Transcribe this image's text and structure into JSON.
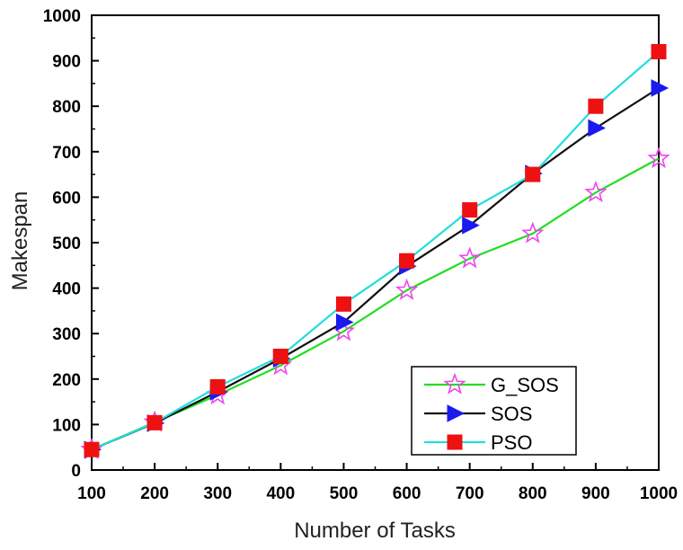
{
  "chart_data": {
    "type": "line",
    "title": "",
    "xlabel": "Number of Tasks",
    "ylabel": "Makespan",
    "xlim": [
      100,
      1000
    ],
    "ylim": [
      0,
      1000
    ],
    "x_ticks": [
      "100",
      "200",
      "300",
      "400",
      "500",
      "600",
      "700",
      "800",
      "900",
      "1000"
    ],
    "y_ticks": [
      "0",
      "100",
      "200",
      "300",
      "400",
      "500",
      "600",
      "700",
      "800",
      "900",
      "1000"
    ],
    "grid": false,
    "legend_position": "bottom-right",
    "series": [
      {
        "name": "G_SOS",
        "color": "#22dd22",
        "marker": "star",
        "marker_color": "#ee44ee",
        "x": [
          100,
          200,
          300,
          400,
          500,
          600,
          700,
          800,
          900,
          1000
        ],
        "y": [
          45,
          105,
          165,
          230,
          305,
          395,
          465,
          520,
          610,
          685
        ]
      },
      {
        "name": "SOS",
        "color": "#111111",
        "marker": "triangle-right",
        "marker_color": "#1a1aee",
        "x": [
          100,
          200,
          300,
          400,
          500,
          600,
          700,
          800,
          900,
          1000
        ],
        "y": [
          45,
          103,
          172,
          245,
          325,
          448,
          538,
          652,
          752,
          840
        ]
      },
      {
        "name": "PSO",
        "color": "#22dddd",
        "marker": "square",
        "marker_color": "#ee1111",
        "x": [
          100,
          200,
          300,
          400,
          500,
          600,
          700,
          800,
          900,
          1000
        ],
        "y": [
          45,
          104,
          183,
          250,
          365,
          460,
          572,
          650,
          800,
          920
        ]
      }
    ]
  }
}
